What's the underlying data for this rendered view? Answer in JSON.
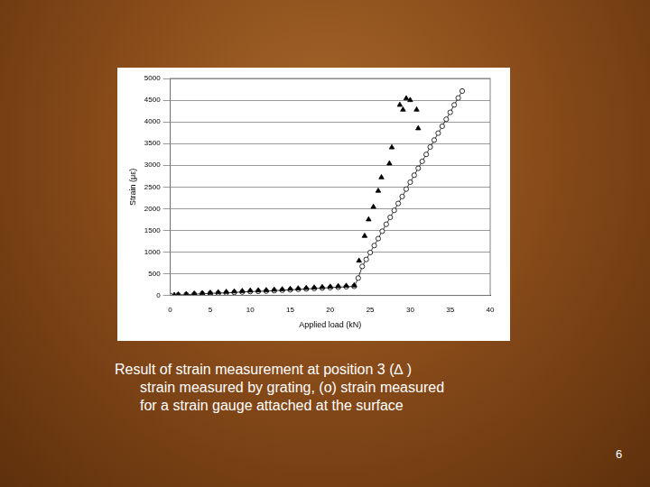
{
  "chart_data": {
    "type": "scatter",
    "x_label": "Applied load (kN)",
    "y_label": "Strain (με)",
    "xlim": [
      0,
      40
    ],
    "xticks": [
      0,
      5,
      10,
      15,
      20,
      25,
      30,
      35,
      40
    ],
    "ylim": [
      0,
      5000
    ],
    "yticks": [
      0,
      500,
      1000,
      1500,
      2000,
      2500,
      3000,
      3500,
      4000,
      4500,
      5000
    ],
    "grid": true,
    "series": [
      {
        "marker": "triangle",
        "line_style": "none",
        "color": "#000000",
        "x": [
          0.5,
          1,
          2,
          3,
          4,
          5,
          6,
          7,
          8,
          9,
          10,
          11,
          12,
          13,
          14,
          15,
          16,
          17,
          18,
          19,
          20,
          21,
          22,
          23,
          23.6,
          24.3,
          24.8,
          25.4,
          26.0,
          26.4,
          27.4,
          27.7,
          28.7,
          29.1,
          29.5,
          30.0,
          30.8,
          31.0
        ],
        "values": [
          10,
          20,
          30,
          40,
          50,
          60,
          70,
          80,
          90,
          100,
          110,
          115,
          120,
          130,
          140,
          150,
          160,
          170,
          180,
          190,
          200,
          210,
          220,
          230,
          800,
          1370,
          1750,
          2040,
          2410,
          2720,
          3040,
          3410,
          4390,
          4280,
          4540,
          4500,
          4280,
          3850
        ]
      },
      {
        "marker": "circle",
        "line_style": "solid",
        "color": "#000000",
        "x": [
          0,
          1,
          2,
          3,
          4,
          5,
          6,
          7,
          8,
          9,
          10,
          11,
          12,
          13,
          14,
          15,
          16,
          17,
          18,
          19,
          20,
          21,
          22,
          23,
          23.5,
          24,
          24.5,
          25,
          25.5,
          26,
          26.5,
          27,
          27.5,
          28,
          28.5,
          29,
          29.5,
          30,
          30.5,
          31,
          31.5,
          32,
          32.5,
          33,
          33.5,
          34,
          34.5,
          35,
          35.5,
          36,
          36.5
        ],
        "values": [
          0,
          10,
          20,
          30,
          40,
          50,
          55,
          60,
          70,
          80,
          90,
          95,
          100,
          110,
          120,
          130,
          140,
          150,
          160,
          170,
          180,
          190,
          200,
          210,
          400,
          670,
          830,
          990,
          1150,
          1310,
          1480,
          1640,
          1800,
          1960,
          2120,
          2280,
          2450,
          2610,
          2770,
          2930,
          3090,
          3250,
          3420,
          3580,
          3740,
          3900,
          4060,
          4220,
          4390,
          4550,
          4710
        ]
      }
    ]
  },
  "slide": {
    "caption": [
      "Result of strain measurement at position 3 (∆ )",
      "strain measured by grating, (o) strain measured",
      "for a strain gauge attached at the surface"
    ],
    "page": 6
  }
}
